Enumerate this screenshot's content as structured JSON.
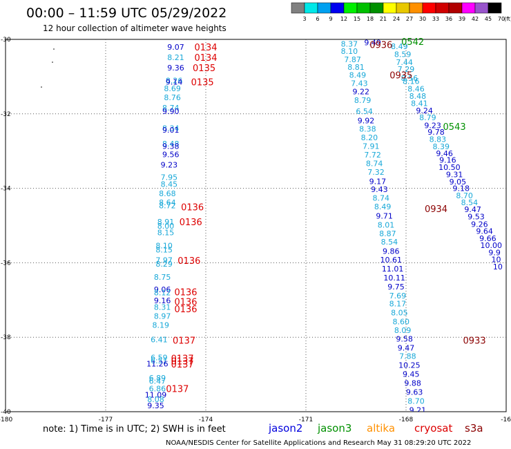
{
  "title": "00:00 – 11:59 UTC 05/29/2022",
  "subtitle": "12 hour collection of altimeter wave heights",
  "color_scale": {
    "labels": [
      "3",
      "6",
      "9",
      "12",
      "15",
      "18",
      "21",
      "24",
      "27",
      "30",
      "33",
      "36",
      "39",
      "42",
      "45",
      "70",
      "(ft)"
    ],
    "colors": [
      "#808080",
      "#00e8e8",
      "#00a0f0",
      "#0000f0",
      "#00f000",
      "#00c000",
      "#009000",
      "#ffff00",
      "#e8c800",
      "#ff9000",
      "#ff0000",
      "#d00000",
      "#b00000",
      "#ff00ff",
      "#9955cc",
      "#000000"
    ]
  },
  "note": "note:  1) Time is in UTC;  2) SWH is in feet",
  "satellites": [
    {
      "name": "jason2",
      "color": "#0000dd"
    },
    {
      "name": "jason3",
      "color": "#009000"
    },
    {
      "name": "altika",
      "color": "#ff9000"
    },
    {
      "name": "cryosat",
      "color": "#dd0000"
    },
    {
      "name": "s3a",
      "color": "#8b0000"
    }
  ],
  "credit": "NOAA/NESDIS Center for Satellite Applications and Research     May 31 08:29:20 UTC 2022",
  "chart_data": {
    "type": "scatter",
    "title": "00:00 – 11:59 UTC 05/29/2022",
    "xlabel": "",
    "ylabel": "",
    "xlim": [
      -180,
      -165
    ],
    "ylim": [
      -40,
      -30
    ],
    "x_ticks": [
      "-180",
      "-177",
      "-174",
      "-171",
      "-168",
      "-16"
    ],
    "y_ticks": [
      "-30",
      "-32",
      "-34",
      "-36",
      "-38",
      "-40"
    ],
    "grid": true,
    "points": [
      {
        "x": -174.9,
        "y": -30.2,
        "label": "9.07",
        "sat": "jason2"
      },
      {
        "x": -174.9,
        "y": -30.48,
        "label": "8.21",
        "sat": "altika"
      },
      {
        "x": -174.9,
        "y": -30.76,
        "label": "9.36",
        "sat": "jason2"
      },
      {
        "x": -174.95,
        "y": -31.1,
        "label": "8.26",
        "sat": "altika"
      },
      {
        "x": -174.95,
        "y": -31.14,
        "label": "9.14",
        "sat": "jason2"
      },
      {
        "x": -175.0,
        "y": -31.32,
        "label": "8.69",
        "sat": "altika"
      },
      {
        "x": -175.0,
        "y": -31.56,
        "label": "8.76",
        "sat": "altika"
      },
      {
        "x": -175.05,
        "y": -31.84,
        "label": "8.74",
        "sat": "altika"
      },
      {
        "x": -175.05,
        "y": -31.93,
        "label": "9.90",
        "sat": "jason2"
      },
      {
        "x": -175.05,
        "y": -32.38,
        "label": "8.34",
        "sat": "altika"
      },
      {
        "x": -175.05,
        "y": -32.43,
        "label": "9.01",
        "sat": "jason2"
      },
      {
        "x": -175.05,
        "y": -32.8,
        "label": "8.48",
        "sat": "altika"
      },
      {
        "x": -175.05,
        "y": -32.87,
        "label": "9.38",
        "sat": "jason2"
      },
      {
        "x": -175.05,
        "y": -33.09,
        "label": "9.56",
        "sat": "jason2"
      },
      {
        "x": -175.1,
        "y": -33.37,
        "label": "9.23",
        "sat": "jason2"
      },
      {
        "x": -175.1,
        "y": -33.7,
        "label": "7.95",
        "sat": "altika"
      },
      {
        "x": -175.1,
        "y": -33.89,
        "label": "8.45",
        "sat": "altika"
      },
      {
        "x": -175.15,
        "y": -34.14,
        "label": "8.68",
        "sat": "altika"
      },
      {
        "x": -175.15,
        "y": -34.38,
        "label": "8.64",
        "sat": "altika"
      },
      {
        "x": -175.15,
        "y": -34.46,
        "label": "8.72",
        "sat": "altika"
      },
      {
        "x": -175.2,
        "y": -34.9,
        "label": "8.91",
        "sat": "altika"
      },
      {
        "x": -175.2,
        "y": -35.01,
        "label": "8.00",
        "sat": "altika"
      },
      {
        "x": -175.2,
        "y": -35.19,
        "label": "8.15",
        "sat": "altika"
      },
      {
        "x": -175.25,
        "y": -35.54,
        "label": "8.10",
        "sat": "altika"
      },
      {
        "x": -175.25,
        "y": -35.65,
        "label": "8.15",
        "sat": "altika"
      },
      {
        "x": -175.25,
        "y": -35.93,
        "label": "7.97",
        "sat": "altika"
      },
      {
        "x": -175.25,
        "y": -36.03,
        "label": "8.29",
        "sat": "altika"
      },
      {
        "x": -175.3,
        "y": -36.38,
        "label": "8.75",
        "sat": "altika"
      },
      {
        "x": -175.3,
        "y": -36.72,
        "label": "9.06",
        "sat": "jason2"
      },
      {
        "x": -175.3,
        "y": -36.8,
        "label": "8.12",
        "sat": "altika"
      },
      {
        "x": -175.3,
        "y": -37.01,
        "label": "9.16",
        "sat": "jason2"
      },
      {
        "x": -175.3,
        "y": -37.19,
        "label": "8.31",
        "sat": "altika"
      },
      {
        "x": -175.3,
        "y": -37.43,
        "label": "8.97",
        "sat": "altika"
      },
      {
        "x": -175.35,
        "y": -37.67,
        "label": "8.19",
        "sat": "altika"
      },
      {
        "x": -175.4,
        "y": -38.06,
        "label": "6.41",
        "sat": "altika"
      },
      {
        "x": -175.4,
        "y": -38.54,
        "label": "6.59",
        "sat": "altika"
      },
      {
        "x": -175.4,
        "y": -38.63,
        "label": "6.51",
        "sat": "altika"
      },
      {
        "x": -175.45,
        "y": -38.71,
        "label": "11.26",
        "sat": "jason2"
      },
      {
        "x": -175.45,
        "y": -39.09,
        "label": "6.89",
        "sat": "altika"
      },
      {
        "x": -175.45,
        "y": -39.17,
        "label": "6.47",
        "sat": "altika"
      },
      {
        "x": -175.45,
        "y": -39.38,
        "label": "6.86",
        "sat": "altika"
      },
      {
        "x": -175.5,
        "y": -39.55,
        "label": "11.09",
        "sat": "jason2"
      },
      {
        "x": -175.5,
        "y": -39.67,
        "label": "8.08",
        "sat": "altika"
      },
      {
        "x": -175.5,
        "y": -39.83,
        "label": "9.35",
        "sat": "jason2"
      },
      {
        "x": -169.0,
        "y": -30.08,
        "label": "9.49",
        "sat": "jason2"
      },
      {
        "x": -169.7,
        "y": -30.12,
        "label": "8.37",
        "sat": "altika"
      },
      {
        "x": -168.2,
        "y": -30.19,
        "label": "8.49",
        "sat": "altika"
      },
      {
        "x": -169.7,
        "y": -30.32,
        "label": "8.10",
        "sat": "altika"
      },
      {
        "x": -168.1,
        "y": -30.4,
        "label": "8.59",
        "sat": "altika"
      },
      {
        "x": -169.6,
        "y": -30.54,
        "label": "7.87",
        "sat": "altika"
      },
      {
        "x": -168.05,
        "y": -30.61,
        "label": "7.44",
        "sat": "altika"
      },
      {
        "x": -169.5,
        "y": -30.74,
        "label": "8.81",
        "sat": "altika"
      },
      {
        "x": -168.0,
        "y": -30.8,
        "label": "7.29",
        "sat": "altika"
      },
      {
        "x": -169.45,
        "y": -30.96,
        "label": "8.49",
        "sat": "altika"
      },
      {
        "x": -167.9,
        "y": -31.04,
        "label": "8.56",
        "sat": "altika"
      },
      {
        "x": -167.85,
        "y": -31.12,
        "label": "8.16",
        "sat": "altika"
      },
      {
        "x": -169.4,
        "y": -31.18,
        "label": "7.43",
        "sat": "altika"
      },
      {
        "x": -167.7,
        "y": -31.33,
        "label": "8.46",
        "sat": "altika"
      },
      {
        "x": -169.35,
        "y": -31.4,
        "label": "9.22",
        "sat": "jason2"
      },
      {
        "x": -167.65,
        "y": -31.52,
        "label": "8.48",
        "sat": "altika"
      },
      {
        "x": -169.3,
        "y": -31.63,
        "label": "8.79",
        "sat": "altika"
      },
      {
        "x": -167.6,
        "y": -31.72,
        "label": "8.41",
        "sat": "altika"
      },
      {
        "x": -167.45,
        "y": -31.91,
        "label": "9.24",
        "sat": "jason2"
      },
      {
        "x": -169.25,
        "y": -31.93,
        "label": "6.54",
        "sat": "altika"
      },
      {
        "x": -167.35,
        "y": -32.1,
        "label": "8.79",
        "sat": "altika"
      },
      {
        "x": -169.2,
        "y": -32.18,
        "label": "9.92",
        "sat": "jason2"
      },
      {
        "x": -167.2,
        "y": -32.31,
        "label": "9.23",
        "sat": "jason2"
      },
      {
        "x": -169.15,
        "y": -32.4,
        "label": "8.38",
        "sat": "altika"
      },
      {
        "x": -167.1,
        "y": -32.49,
        "label": "9.78",
        "sat": "jason2"
      },
      {
        "x": -169.1,
        "y": -32.63,
        "label": "8.20",
        "sat": "altika"
      },
      {
        "x": -167.05,
        "y": -32.68,
        "label": "8.83",
        "sat": "altika"
      },
      {
        "x": -169.05,
        "y": -32.87,
        "label": "7.91",
        "sat": "altika"
      },
      {
        "x": -166.95,
        "y": -32.88,
        "label": "8.39",
        "sat": "altika"
      },
      {
        "x": -166.85,
        "y": -33.06,
        "label": "9.46",
        "sat": "jason2"
      },
      {
        "x": -169.0,
        "y": -33.1,
        "label": "7.72",
        "sat": "altika"
      },
      {
        "x": -166.75,
        "y": -33.24,
        "label": "9.16",
        "sat": "jason2"
      },
      {
        "x": -168.95,
        "y": -33.33,
        "label": "8.74",
        "sat": "altika"
      },
      {
        "x": -166.7,
        "y": -33.43,
        "label": "10.50",
        "sat": "jason2"
      },
      {
        "x": -168.9,
        "y": -33.56,
        "label": "7.32",
        "sat": "altika"
      },
      {
        "x": -166.55,
        "y": -33.63,
        "label": "9.31",
        "sat": "jason2"
      },
      {
        "x": -168.85,
        "y": -33.81,
        "label": "9.17",
        "sat": "jason2"
      },
      {
        "x": -166.45,
        "y": -33.82,
        "label": "9.05",
        "sat": "jason2"
      },
      {
        "x": -166.35,
        "y": -34.0,
        "label": "9.18",
        "sat": "jason2"
      },
      {
        "x": -168.8,
        "y": -34.03,
        "label": "9.43",
        "sat": "jason2"
      },
      {
        "x": -166.25,
        "y": -34.19,
        "label": "8.70",
        "sat": "altika"
      },
      {
        "x": -168.75,
        "y": -34.26,
        "label": "8.74",
        "sat": "altika"
      },
      {
        "x": -166.1,
        "y": -34.38,
        "label": "8.54",
        "sat": "altika"
      },
      {
        "x": -168.7,
        "y": -34.49,
        "label": "8.49",
        "sat": "altika"
      },
      {
        "x": -166.0,
        "y": -34.56,
        "label": "9.47",
        "sat": "jason2"
      },
      {
        "x": -168.65,
        "y": -34.74,
        "label": "9.71",
        "sat": "jason2"
      },
      {
        "x": -165.9,
        "y": -34.76,
        "label": "9.53",
        "sat": "jason2"
      },
      {
        "x": -165.8,
        "y": -34.96,
        "label": "9.26",
        "sat": "jason2"
      },
      {
        "x": -168.6,
        "y": -34.98,
        "label": "8.01",
        "sat": "altika"
      },
      {
        "x": -165.65,
        "y": -35.15,
        "label": "9.64",
        "sat": "jason2"
      },
      {
        "x": -168.55,
        "y": -35.21,
        "label": "8.87",
        "sat": "altika"
      },
      {
        "x": -165.55,
        "y": -35.34,
        "label": "9.66",
        "sat": "jason2"
      },
      {
        "x": -168.5,
        "y": -35.44,
        "label": "8.54",
        "sat": "altika"
      },
      {
        "x": -165.45,
        "y": -35.53,
        "label": "10.00",
        "sat": "jason2"
      },
      {
        "x": -168.45,
        "y": -35.69,
        "label": "9.86",
        "sat": "jason2"
      },
      {
        "x": -165.35,
        "y": -35.72,
        "label": "9.9",
        "sat": "jason2"
      },
      {
        "x": -165.3,
        "y": -35.91,
        "label": "10",
        "sat": "jason2"
      },
      {
        "x": -168.45,
        "y": -35.92,
        "label": "10.61",
        "sat": "jason2"
      },
      {
        "x": -165.25,
        "y": -36.1,
        "label": "10",
        "sat": "jason2"
      },
      {
        "x": -168.4,
        "y": -36.16,
        "label": "11.01",
        "sat": "jason2"
      },
      {
        "x": -168.35,
        "y": -36.4,
        "label": "10.11",
        "sat": "jason2"
      },
      {
        "x": -168.3,
        "y": -36.64,
        "label": "9.75",
        "sat": "jason2"
      },
      {
        "x": -168.25,
        "y": -36.88,
        "label": "7.69",
        "sat": "altika"
      },
      {
        "x": -168.25,
        "y": -37.1,
        "label": "8.17",
        "sat": "altika"
      },
      {
        "x": -168.2,
        "y": -37.34,
        "label": "8.05",
        "sat": "altika"
      },
      {
        "x": -168.15,
        "y": -37.58,
        "label": "8.60",
        "sat": "altika"
      },
      {
        "x": -168.1,
        "y": -37.81,
        "label": "8.09",
        "sat": "altika"
      },
      {
        "x": -168.05,
        "y": -38.04,
        "label": "9.58",
        "sat": "jason2"
      },
      {
        "x": -168.0,
        "y": -38.28,
        "label": "9.47",
        "sat": "jason2"
      },
      {
        "x": -167.95,
        "y": -38.51,
        "label": "7.88",
        "sat": "altika"
      },
      {
        "x": -167.9,
        "y": -38.75,
        "label": "10.25",
        "sat": "jason2"
      },
      {
        "x": -167.85,
        "y": -38.99,
        "label": "9.45",
        "sat": "jason2"
      },
      {
        "x": -167.8,
        "y": -39.23,
        "label": "9.88",
        "sat": "jason2"
      },
      {
        "x": -167.75,
        "y": -39.47,
        "label": "9.63",
        "sat": "jason2"
      },
      {
        "x": -167.7,
        "y": -39.71,
        "label": "8.70",
        "sat": "altika"
      },
      {
        "x": -167.65,
        "y": -39.95,
        "label": "9.21",
        "sat": "jason2"
      }
    ],
    "time_labels": [
      {
        "x": -174.0,
        "y": -30.2,
        "label": "0134",
        "sat": "cryosat"
      },
      {
        "x": -174.0,
        "y": -30.48,
        "label": "0134",
        "sat": "cryosat"
      },
      {
        "x": -174.05,
        "y": -30.76,
        "label": "0135",
        "sat": "cryosat"
      },
      {
        "x": -174.1,
        "y": -31.14,
        "label": "0135",
        "sat": "cryosat"
      },
      {
        "x": -174.4,
        "y": -34.5,
        "label": "0136",
        "sat": "cryosat"
      },
      {
        "x": -174.45,
        "y": -34.9,
        "label": "0136",
        "sat": "cryosat"
      },
      {
        "x": -174.5,
        "y": -35.94,
        "label": "0136",
        "sat": "cryosat"
      },
      {
        "x": -174.6,
        "y": -36.78,
        "label": "0136",
        "sat": "cryosat"
      },
      {
        "x": -174.6,
        "y": -37.04,
        "label": "0136",
        "sat": "cryosat"
      },
      {
        "x": -174.6,
        "y": -37.24,
        "label": "0136",
        "sat": "cryosat"
      },
      {
        "x": -174.65,
        "y": -38.08,
        "label": "0137",
        "sat": "cryosat"
      },
      {
        "x": -174.7,
        "y": -38.56,
        "label": "0137",
        "sat": "cryosat"
      },
      {
        "x": -174.7,
        "y": -38.64,
        "label": "0137",
        "sat": "cryosat"
      },
      {
        "x": -174.7,
        "y": -38.72,
        "label": "0137",
        "sat": "cryosat"
      },
      {
        "x": -174.85,
        "y": -39.38,
        "label": "0137",
        "sat": "cryosat"
      },
      {
        "x": -167.8,
        "y": -30.06,
        "label": "0542",
        "sat": "jason3"
      },
      {
        "x": -168.75,
        "y": -30.14,
        "label": "0936",
        "sat": "s3a"
      },
      {
        "x": -168.15,
        "y": -30.96,
        "label": "0935",
        "sat": "s3a"
      },
      {
        "x": -166.55,
        "y": -32.34,
        "label": "0543",
        "sat": "jason3"
      },
      {
        "x": -167.1,
        "y": -34.55,
        "label": "0934",
        "sat": "s3a"
      },
      {
        "x": -165.95,
        "y": -38.08,
        "label": "0933",
        "sat": "s3a"
      }
    ]
  }
}
